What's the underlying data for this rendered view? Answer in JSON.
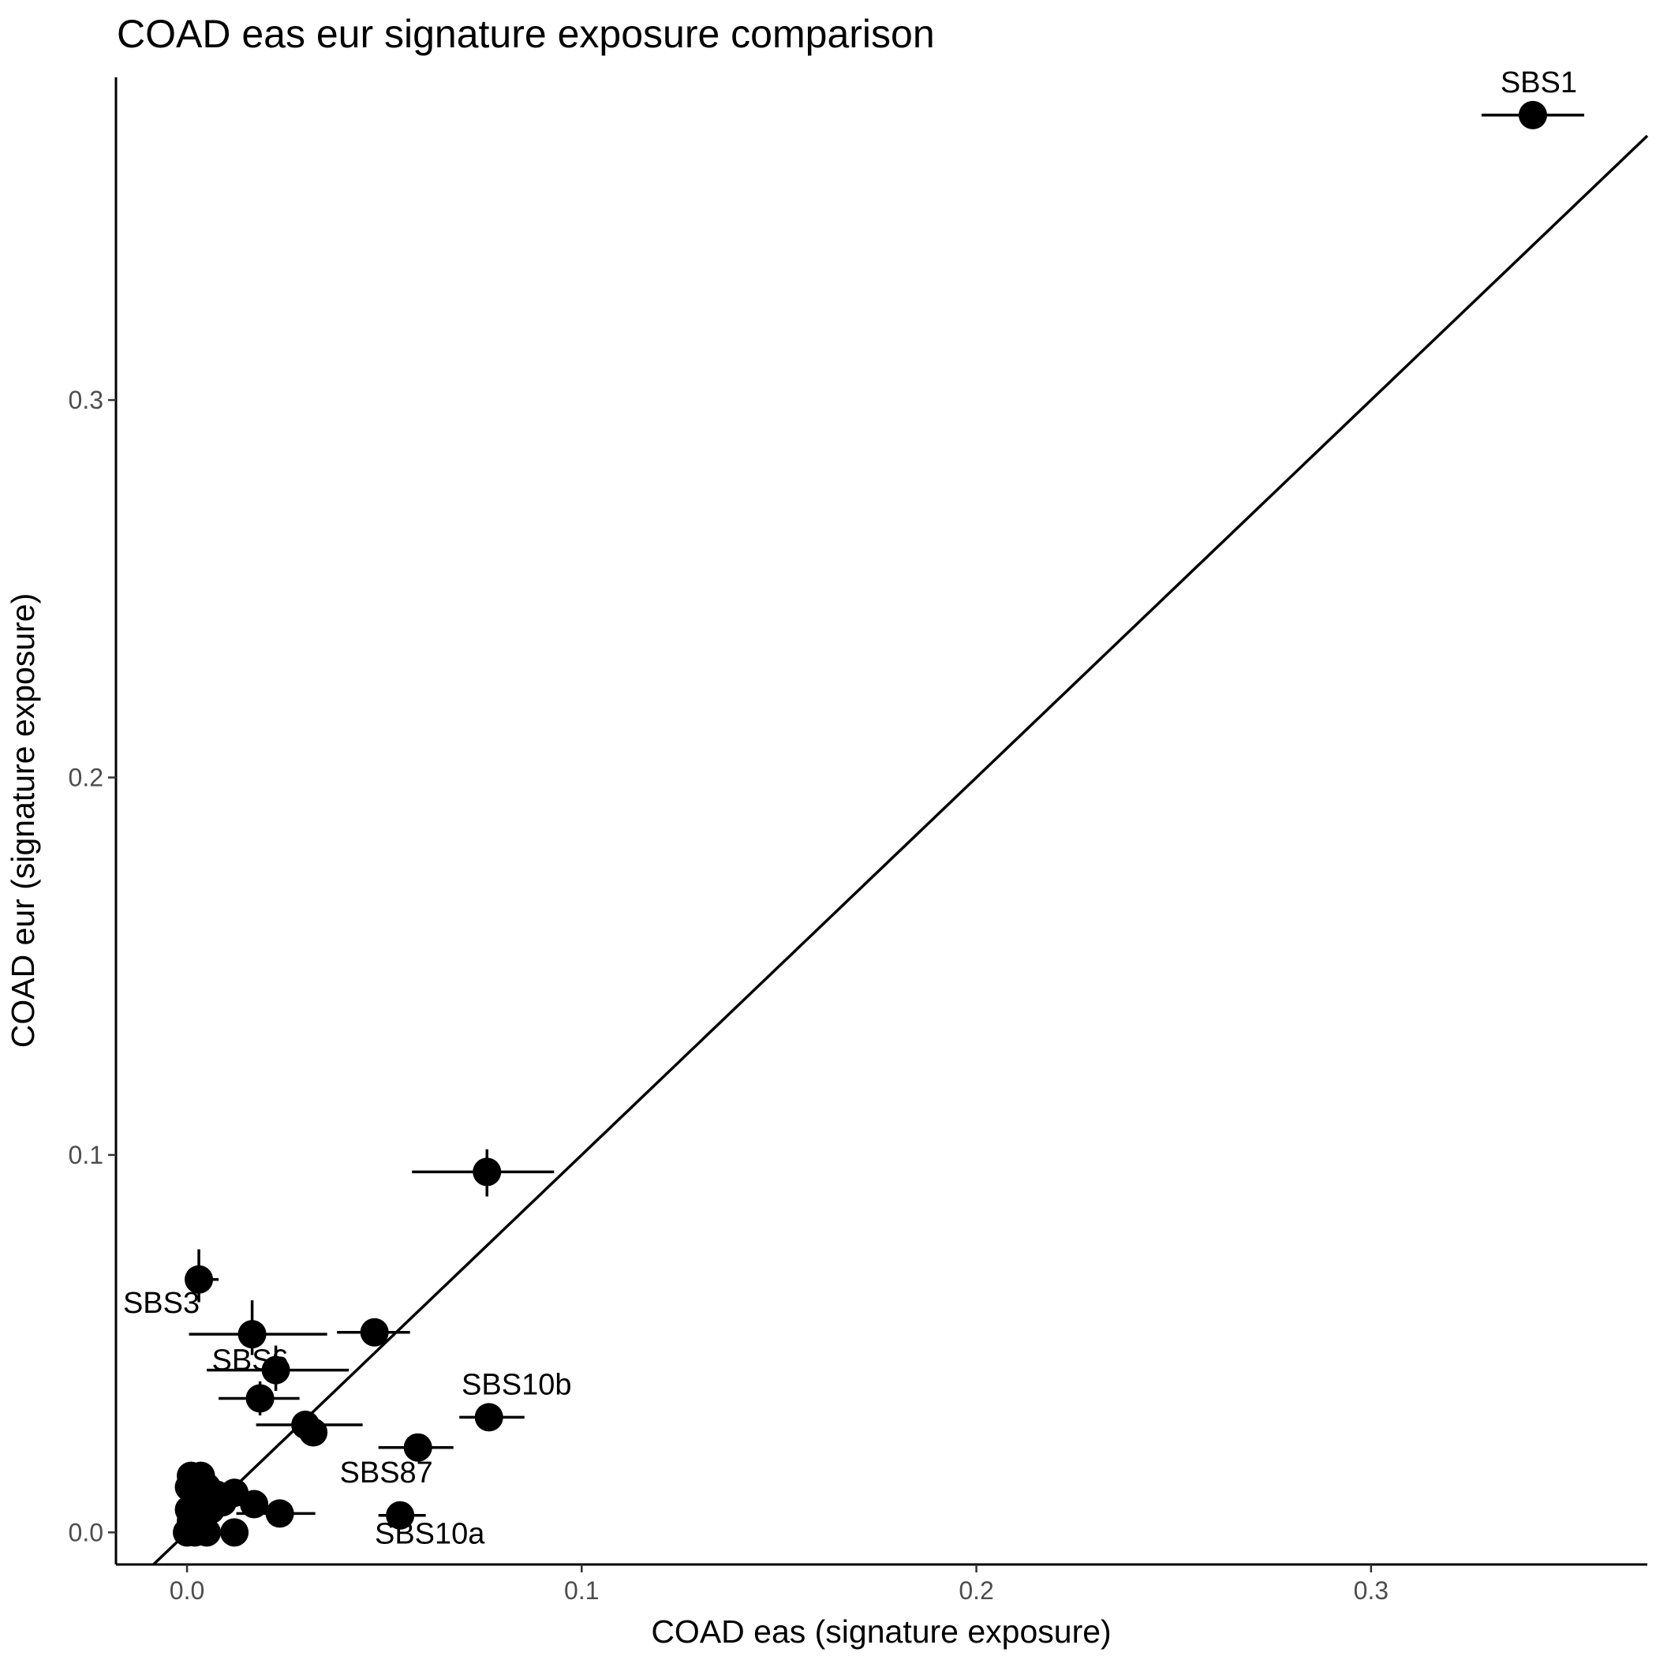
{
  "chart_data": {
    "type": "scatter",
    "title": "COAD eas eur signature exposure comparison",
    "xlabel": "COAD eas (signature exposure)",
    "ylabel": "COAD eur (signature exposure)",
    "xlim": [
      -0.018,
      0.37
    ],
    "ylim": [
      -0.0085,
      0.3855
    ],
    "x_ticks": [
      0.0,
      0.1,
      0.2,
      0.3
    ],
    "x_tick_labels": [
      "0.0",
      "0.1",
      "0.2",
      "0.3"
    ],
    "y_ticks": [
      0.0,
      0.1,
      0.2,
      0.3
    ],
    "y_tick_labels": [
      "0.0",
      "0.1",
      "0.2",
      "0.3"
    ],
    "grid": false,
    "reference_line": "identity (y = x)",
    "point_color": "#000000",
    "points": [
      {
        "label": "SBS1",
        "x": 0.341,
        "y": 0.3755,
        "xerr": [
          0.328,
          0.354
        ],
        "yerr": null
      },
      {
        "label": "",
        "x": 0.076,
        "y": 0.0955,
        "xerr": [
          0.057,
          0.093
        ],
        "yerr": [
          0.089,
          0.1015
        ]
      },
      {
        "label": "SBS3",
        "x": 0.003,
        "y": 0.067,
        "xerr": [
          0.002,
          0.008
        ],
        "yerr": [
          0.061,
          0.075
        ]
      },
      {
        "label": "",
        "x": 0.0475,
        "y": 0.053,
        "xerr": [
          0.038,
          0.0565
        ],
        "yerr": null
      },
      {
        "label": "",
        "x": 0.0165,
        "y": 0.0525,
        "xerr": [
          0.0005,
          0.0355
        ],
        "yerr": [
          0.047,
          0.0615
        ]
      },
      {
        "label": "SBS6",
        "x": 0.0225,
        "y": 0.043,
        "xerr": [
          0.005,
          0.041
        ],
        "yerr": [
          0.0375,
          0.0495
        ]
      },
      {
        "label": "",
        "x": 0.0185,
        "y": 0.0355,
        "xerr": [
          0.008,
          0.0285
        ],
        "yerr": [
          0.031,
          0.04
        ]
      },
      {
        "label": "SBS10b",
        "x": 0.0765,
        "y": 0.0305,
        "xerr": [
          0.069,
          0.0855
        ],
        "yerr": null
      },
      {
        "label": "",
        "x": 0.03,
        "y": 0.0285,
        "xerr": [
          0.0175,
          0.0445
        ],
        "yerr": null
      },
      {
        "label": "",
        "x": 0.032,
        "y": 0.0265,
        "xerr": null,
        "yerr": null
      },
      {
        "label": "SBS87",
        "x": 0.0585,
        "y": 0.0225,
        "xerr": [
          0.0485,
          0.0675
        ],
        "yerr": null
      },
      {
        "label": "SBS10a",
        "x": 0.054,
        "y": 0.0045,
        "xerr": [
          0.0485,
          0.0605
        ],
        "yerr": null
      },
      {
        "label": "",
        "x": 0.0235,
        "y": 0.005,
        "xerr": [
          0.0125,
          0.0325
        ],
        "yerr": null
      },
      {
        "label": "",
        "x": 0.017,
        "y": 0.0075,
        "xerr": null,
        "yerr": null
      },
      {
        "label": "",
        "x": 0.012,
        "y": 0.0105,
        "xerr": null,
        "yerr": null
      },
      {
        "label": "",
        "x": 0.012,
        "y": 0.0,
        "xerr": null,
        "yerr": null
      },
      {
        "label": "",
        "x": 0.009,
        "y": 0.008,
        "xerr": null,
        "yerr": null
      },
      {
        "label": "",
        "x": 0.0075,
        "y": 0.01,
        "xerr": null,
        "yerr": null
      },
      {
        "label": "",
        "x": 0.006,
        "y": 0.006,
        "xerr": null,
        "yerr": null
      },
      {
        "label": "",
        "x": 0.005,
        "y": 0.0,
        "xerr": null,
        "yerr": null
      },
      {
        "label": "",
        "x": 0.005,
        "y": 0.012,
        "xerr": null,
        "yerr": null
      },
      {
        "label": "",
        "x": 0.0035,
        "y": 0.015,
        "xerr": null,
        "yerr": null
      },
      {
        "label": "",
        "x": 0.003,
        "y": 0.008,
        "xerr": null,
        "yerr": null
      },
      {
        "label": "",
        "x": 0.0025,
        "y": 0.003,
        "xerr": null,
        "yerr": null
      },
      {
        "label": "",
        "x": 0.002,
        "y": 0.0,
        "xerr": null,
        "yerr": null
      },
      {
        "label": "",
        "x": 0.001,
        "y": 0.015,
        "xerr": null,
        "yerr": null
      },
      {
        "label": "",
        "x": 0.0005,
        "y": 0.012,
        "xerr": null,
        "yerr": null
      },
      {
        "label": "",
        "x": 0.0005,
        "y": 0.006,
        "xerr": null,
        "yerr": null
      },
      {
        "label": "",
        "x": 0.0,
        "y": 0.0,
        "xerr": null,
        "yerr": null
      },
      {
        "label": "",
        "x": 0.001,
        "y": 0.003,
        "xerr": null,
        "yerr": null
      }
    ],
    "annotations": [
      {
        "text": "SBS1",
        "x": 0.3425,
        "y": 0.3815
      },
      {
        "text": "SBS3",
        "x": -0.0065,
        "y": 0.0582
      },
      {
        "text": "SBS6",
        "x": 0.016,
        "y": 0.043
      },
      {
        "text": "SBS10b",
        "x": 0.0835,
        "y": 0.0365
      },
      {
        "text": "SBS87",
        "x": 0.0505,
        "y": 0.0132
      },
      {
        "text": "SBS10a",
        "x": 0.0615,
        "y": -0.003
      }
    ]
  }
}
